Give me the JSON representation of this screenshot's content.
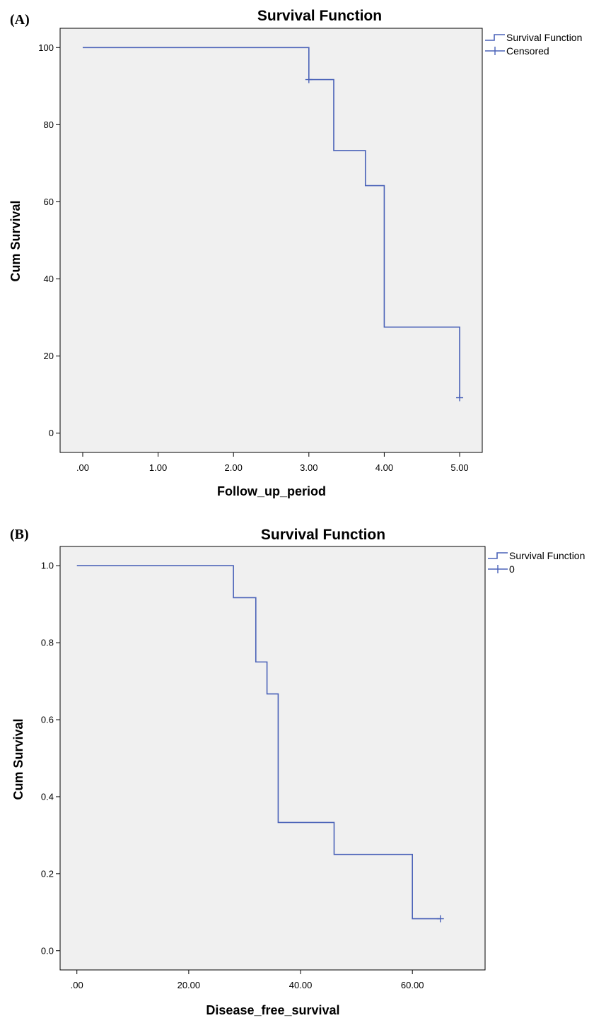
{
  "chart_data": [
    {
      "type": "line",
      "panel_label": "(A)",
      "title": "Survival Function",
      "xlabel": "Follow_up_period",
      "ylabel": "Cum Survival",
      "xlim": [
        -0.3,
        5.3
      ],
      "ylim": [
        -5,
        105
      ],
      "x_ticks": [
        0,
        1,
        2,
        3,
        4,
        5
      ],
      "x_tick_labels": [
        ".00",
        "1.00",
        "2.00",
        "3.00",
        "4.00",
        "5.00"
      ],
      "y_ticks": [
        0,
        20,
        40,
        60,
        80,
        100
      ],
      "y_tick_labels": [
        "0",
        "20",
        "40",
        "60",
        "80",
        "100"
      ],
      "grid": false,
      "legend_position": "outside-top-right",
      "legend": [
        "Survival Function",
        "Censored"
      ],
      "color": "#4a62b8",
      "series": [
        {
          "name": "Survival Function",
          "style": "step",
          "x": [
            0,
            3.0,
            3.33,
            3.75,
            4.0,
            5.0
          ],
          "y": [
            100,
            91.7,
            73.3,
            64.2,
            27.5,
            9.2
          ]
        },
        {
          "name": "Censored",
          "style": "marker",
          "x": [
            3.0,
            5.0
          ],
          "y": [
            91.7,
            9.2
          ]
        }
      ]
    },
    {
      "type": "line",
      "panel_label": "(B)",
      "title": "Survival Function",
      "xlabel": "Disease_free_survival",
      "ylabel": "Cum Survival",
      "xlim": [
        -3,
        73
      ],
      "ylim": [
        -0.05,
        1.05
      ],
      "x_ticks": [
        0,
        20,
        40,
        60
      ],
      "x_tick_labels": [
        ".00",
        "20.00",
        "40.00",
        "60.00"
      ],
      "y_ticks": [
        0,
        0.2,
        0.4,
        0.6,
        0.8,
        1.0
      ],
      "y_tick_labels": [
        "0.0",
        "0.2",
        "0.4",
        "0.6",
        "0.8",
        "1.0"
      ],
      "grid": false,
      "legend_position": "outside-top-right",
      "legend": [
        "Survival Function",
        "0"
      ],
      "color": "#4a62b8",
      "series": [
        {
          "name": "Survival Function",
          "style": "step",
          "x": [
            0,
            28,
            32,
            34,
            36,
            46,
            60,
            65
          ],
          "y": [
            1.0,
            0.917,
            0.75,
            0.667,
            0.333,
            0.25,
            0.083,
            0.083
          ]
        },
        {
          "name": "0",
          "style": "marker",
          "x": [
            65
          ],
          "y": [
            0.083
          ]
        }
      ]
    }
  ]
}
